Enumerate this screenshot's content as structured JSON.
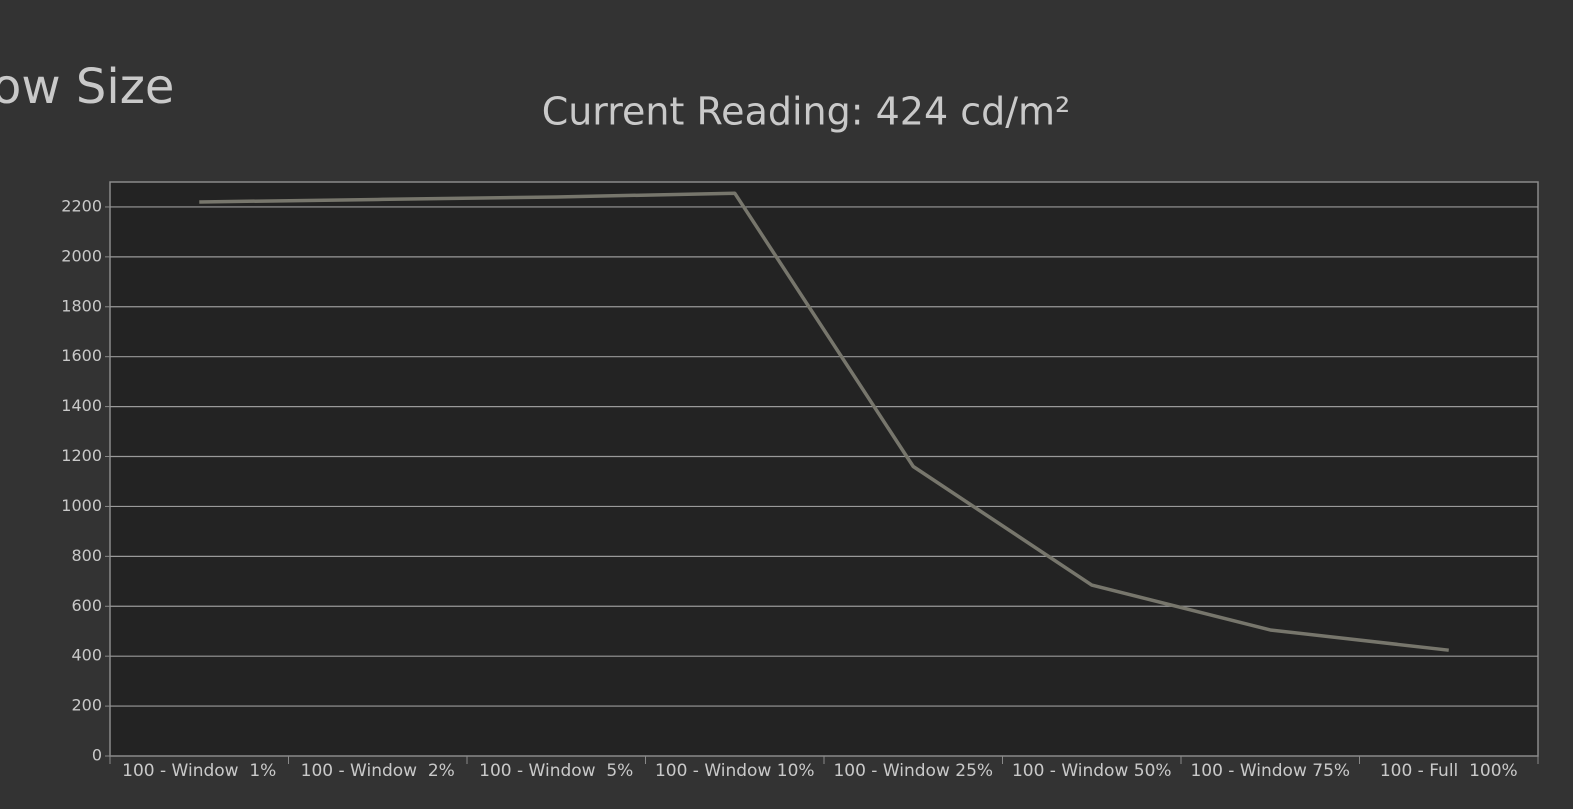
{
  "page_title": "ow Size",
  "chart_data": {
    "type": "line",
    "title": "Current Reading: 424 cd/m²",
    "categories": [
      "100 - Window  1%",
      "100 - Window  2%",
      "100 - Window  5%",
      "100 - Window 10%",
      "100 - Window 25%",
      "100 - Window 50%",
      "100 - Window 75%",
      "100 - Full  100%"
    ],
    "series": [
      {
        "color": "#77766c",
        "values": [
          2220,
          2230,
          2240,
          2255,
          1160,
          685,
          505,
          424
        ]
      }
    ],
    "ylim": [
      0,
      2300
    ],
    "yticks": [
      0,
      200,
      400,
      600,
      800,
      1000,
      1200,
      1400,
      1600,
      1800,
      2000,
      2200
    ],
    "grid": true
  }
}
